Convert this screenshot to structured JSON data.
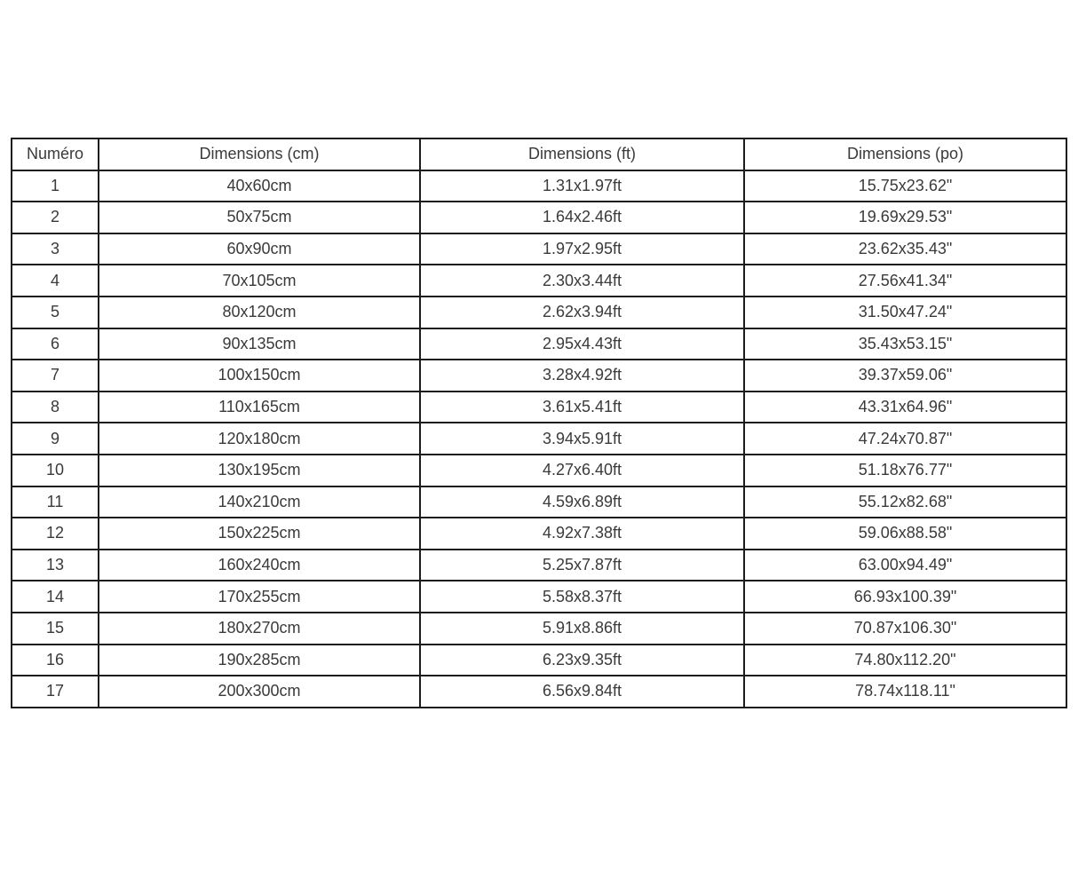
{
  "table": {
    "headers": [
      "Numéro",
      "Dimensions (cm)",
      "Dimensions (ft)",
      "Dimensions (po)"
    ],
    "rows": [
      [
        "1",
        "40x60cm",
        "1.31x1.97ft",
        "15.75x23.62\""
      ],
      [
        "2",
        "50x75cm",
        "1.64x2.46ft",
        "19.69x29.53\""
      ],
      [
        "3",
        "60x90cm",
        "1.97x2.95ft",
        "23.62x35.43\""
      ],
      [
        "4",
        "70x105cm",
        "2.30x3.44ft",
        "27.56x41.34\""
      ],
      [
        "5",
        "80x120cm",
        "2.62x3.94ft",
        "31.50x47.24\""
      ],
      [
        "6",
        "90x135cm",
        "2.95x4.43ft",
        "35.43x53.15\""
      ],
      [
        "7",
        "100x150cm",
        "3.28x4.92ft",
        "39.37x59.06\""
      ],
      [
        "8",
        "110x165cm",
        "3.61x5.41ft",
        "43.31x64.96\""
      ],
      [
        "9",
        "120x180cm",
        "3.94x5.91ft",
        "47.24x70.87\""
      ],
      [
        "10",
        "130x195cm",
        "4.27x6.40ft",
        "51.18x76.77\""
      ],
      [
        "11",
        "140x210cm",
        "4.59x6.89ft",
        "55.12x82.68\""
      ],
      [
        "12",
        "150x225cm",
        "4.92x7.38ft",
        "59.06x88.58\""
      ],
      [
        "13",
        "160x240cm",
        "5.25x7.87ft",
        "63.00x94.49\""
      ],
      [
        "14",
        "170x255cm",
        "5.58x8.37ft",
        "66.93x100.39\""
      ],
      [
        "15",
        "180x270cm",
        "5.91x8.86ft",
        "70.87x106.30\""
      ],
      [
        "16",
        "190x285cm",
        "6.23x9.35ft",
        "74.80x112.20\""
      ],
      [
        "17",
        "200x300cm",
        "6.56x9.84ft",
        "78.74x118.11\""
      ]
    ]
  },
  "colors": {
    "background": "#ffffff",
    "border": "#1c1c1c",
    "text": "#3a3a3a"
  }
}
